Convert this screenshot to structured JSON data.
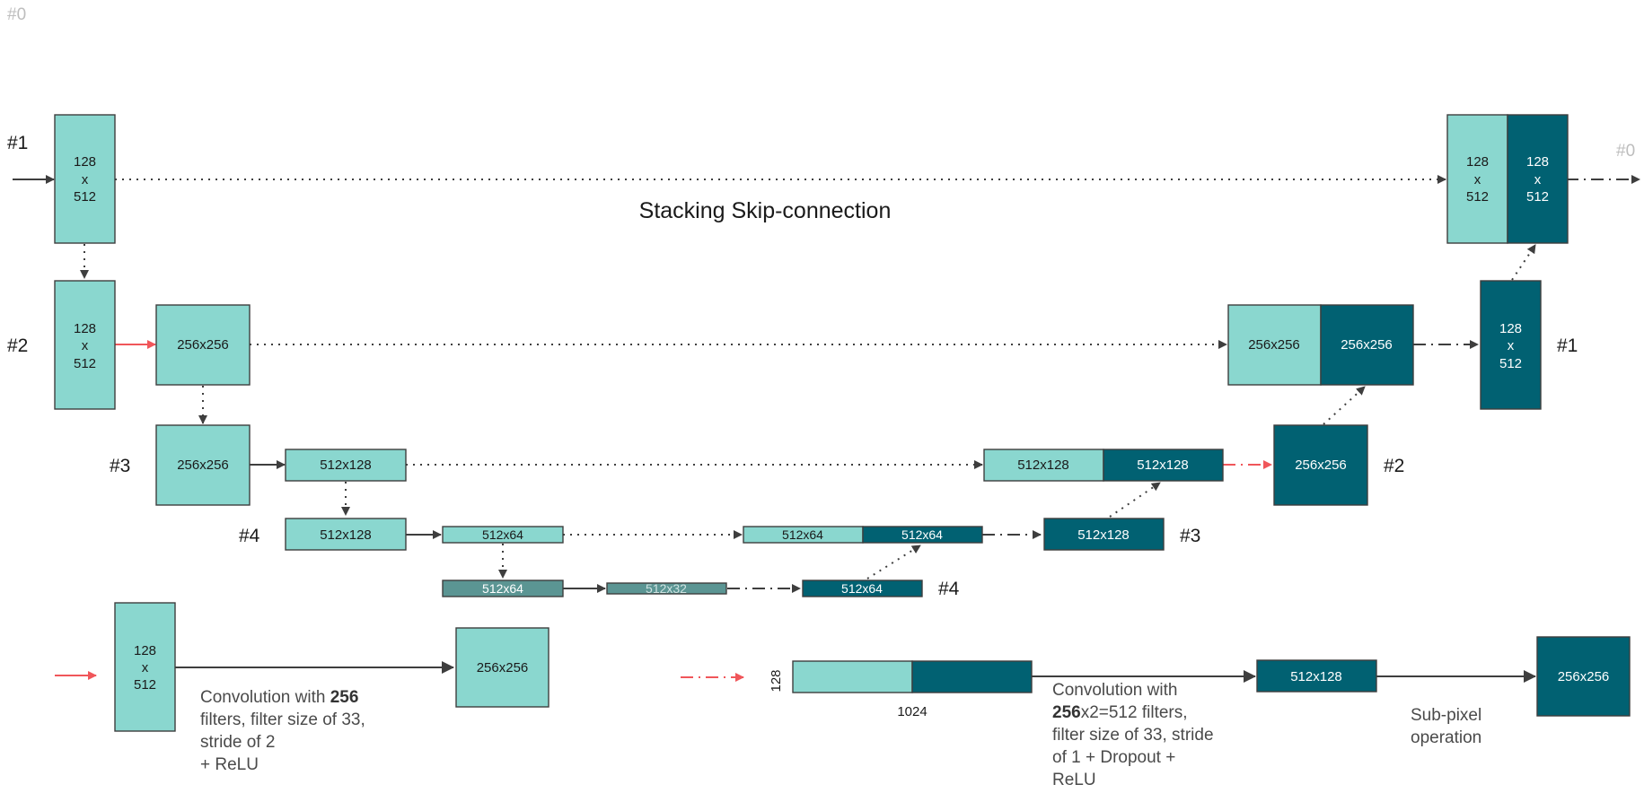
{
  "corner_label": "#0",
  "title": "Stacking Skip-connection",
  "colors": {
    "encoder": "#8ad7cf",
    "decoder": "#016172",
    "bottleneck": "#5b9593",
    "upsample_arrow": "#f0565a"
  },
  "levels": {
    "enc1": "#1",
    "enc2": "#2",
    "enc3": "#3",
    "enc4": "#4",
    "out": "#0",
    "dec1": "#1",
    "dec2": "#2",
    "dec3": "#3",
    "dec4": "#4"
  },
  "blocks": {
    "e1": [
      "128",
      "x",
      "512"
    ],
    "e2": [
      "128",
      "x",
      "512"
    ],
    "e2b": "256x256",
    "e3": "256x256",
    "e3b": "512x128",
    "e4": "512x128",
    "e4b": "512x64",
    "b1": "512x64",
    "b2": "512x32",
    "d4": "512x64",
    "s4a": "512x64",
    "s4b": "512x64",
    "d3": "512x128",
    "s3a": "512x128",
    "s3b": "512x128",
    "d2": "256x256",
    "s2a": "256x256",
    "s2b": "256x256",
    "d1": [
      "128",
      "x",
      "512"
    ],
    "s1a": [
      "128",
      "x",
      "512"
    ],
    "s1b": [
      "128",
      "x",
      "512"
    ]
  },
  "legend": {
    "conv_in": [
      "128",
      "x",
      "512"
    ],
    "conv_out": "256x256",
    "conv_desc": [
      "Convolution with ",
      "256",
      "filters, filter size of 33,",
      "stride of 2",
      "+ ReLU"
    ],
    "up_height": "128",
    "up_width": "1024",
    "up_mid": "512x128",
    "up_out": "256x256",
    "up_desc": [
      "Convolution with",
      "256",
      "x2=512 filters,",
      "filter size of 33, stride",
      "of 1 + Dropout +",
      "ReLU"
    ],
    "subpixel": [
      "Sub-pixel",
      "operation"
    ]
  }
}
